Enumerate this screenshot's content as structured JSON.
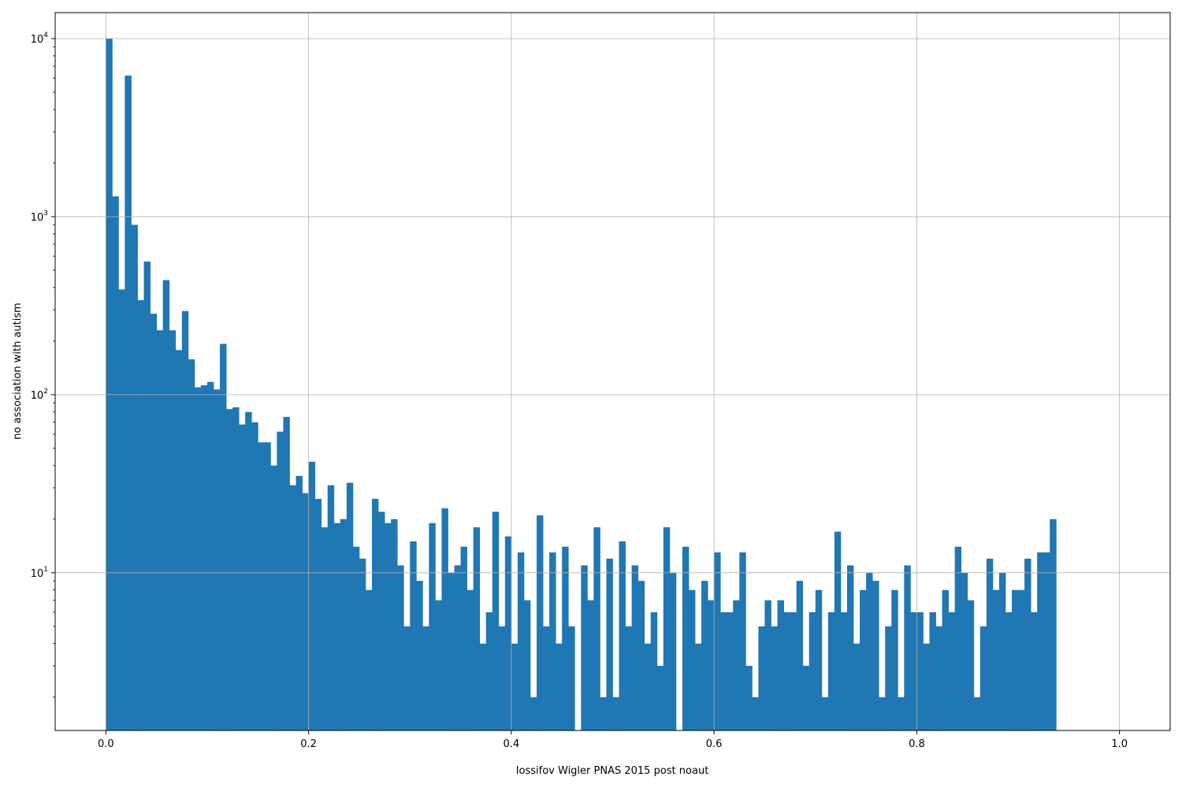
{
  "chart_data": {
    "type": "bar",
    "subtype": "histogram",
    "title": "",
    "xlabel": "Iossifov Wigler PNAS 2015 post noaut",
    "ylabel": "no association with autism",
    "xlim": [
      -0.05,
      1.05
    ],
    "ylim": [
      1.3,
      14000
    ],
    "yscale": "log",
    "grid": true,
    "bar_color": "#1f77b4",
    "bin_start": 0.0,
    "bin_width": 0.00625,
    "x_ticks": [
      {
        "value": 0.0,
        "label": "0.0"
      },
      {
        "value": 0.2,
        "label": "0.2"
      },
      {
        "value": 0.4,
        "label": "0.4"
      },
      {
        "value": 0.6,
        "label": "0.6"
      },
      {
        "value": 0.8,
        "label": "0.8"
      },
      {
        "value": 1.0,
        "label": "1.0"
      }
    ],
    "y_ticks": [
      {
        "value": 10,
        "base": "10",
        "exp": "1"
      },
      {
        "value": 100,
        "base": "10",
        "exp": "2"
      },
      {
        "value": 1000,
        "base": "10",
        "exp": "3"
      },
      {
        "value": 10000,
        "base": "10",
        "exp": "4"
      }
    ],
    "values": [
      10000,
      1300,
      390,
      6200,
      900,
      340,
      560,
      285,
      230,
      440,
      230,
      178,
      295,
      158,
      110,
      113,
      118,
      107,
      193,
      83,
      85,
      68,
      80,
      70,
      54,
      54,
      40,
      62,
      75,
      31,
      35,
      28,
      42,
      26,
      18,
      31,
      19,
      20,
      32,
      14,
      12,
      8,
      26,
      22,
      19,
      20,
      11,
      5,
      15,
      9,
      5,
      19,
      7,
      23,
      10,
      11,
      14,
      8,
      18,
      4,
      6,
      22,
      5,
      16,
      4,
      13,
      7,
      2,
      21,
      5,
      13,
      4,
      14,
      5,
      0,
      11,
      7,
      18,
      2,
      12,
      2,
      15,
      5,
      11,
      9,
      4,
      6,
      3,
      18,
      10,
      0,
      14,
      8,
      4,
      9,
      7,
      13,
      6,
      6,
      7,
      13,
      3,
      2,
      5,
      7,
      5,
      7,
      6,
      6,
      9,
      3,
      6,
      8,
      2,
      6,
      17,
      6,
      11,
      4,
      8,
      10,
      9,
      2,
      5,
      8,
      2,
      11,
      6,
      6,
      4,
      6,
      5,
      8,
      6,
      14,
      10,
      7,
      2,
      5,
      12,
      8,
      10,
      6,
      8,
      8,
      12,
      6,
      13,
      13,
      20
    ]
  }
}
